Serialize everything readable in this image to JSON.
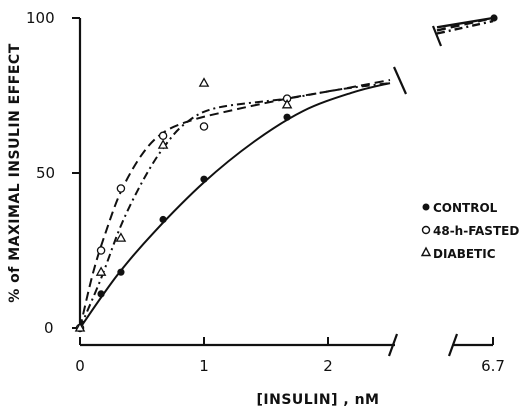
{
  "chart_data": {
    "type": "line",
    "xlabel": "[INSULIN] , nM",
    "ylabel": "% of MAXIMAL INSULIN EFFECT",
    "x_axis": {
      "range": [
        0,
        2.5
      ],
      "break_segment_range": [
        6.5,
        6.9
      ],
      "ticks": [
        "0",
        "1",
        "2",
        "6.7"
      ]
    },
    "y_axis": {
      "range": [
        0,
        100
      ],
      "ticks": [
        "0",
        "50",
        "100"
      ]
    },
    "grid": false,
    "legend_position": "right",
    "series": [
      {
        "name": "CONTROL",
        "marker": "filled-circle",
        "line_style": "solid",
        "points": [
          {
            "x": 0,
            "y": 0
          },
          {
            "x": 0.17,
            "y": 11
          },
          {
            "x": 0.33,
            "y": 18
          },
          {
            "x": 0.67,
            "y": 35
          },
          {
            "x": 1.0,
            "y": 48
          },
          {
            "x": 1.67,
            "y": 68
          }
        ],
        "curve": [
          [
            0,
            0
          ],
          [
            0.3,
            17
          ],
          [
            0.6,
            31
          ],
          [
            1.0,
            47
          ],
          [
            1.4,
            60
          ],
          [
            1.8,
            70
          ],
          [
            2.2,
            76
          ],
          [
            2.5,
            79
          ]
        ],
        "curve_after_break": [
          [
            6.5,
            97
          ],
          [
            6.9,
            100
          ]
        ]
      },
      {
        "name": "48-h-FASTED",
        "marker": "open-circle",
        "line_style": "dashed",
        "points": [
          {
            "x": 0,
            "y": 0
          },
          {
            "x": 0.17,
            "y": 25
          },
          {
            "x": 0.33,
            "y": 45
          },
          {
            "x": 0.67,
            "y": 62
          },
          {
            "x": 1.0,
            "y": 65
          },
          {
            "x": 1.67,
            "y": 74
          }
        ],
        "curve": [
          [
            0,
            0
          ],
          [
            0.1,
            17
          ],
          [
            0.2,
            30
          ],
          [
            0.33,
            44
          ],
          [
            0.5,
            56
          ],
          [
            0.67,
            63
          ],
          [
            0.9,
            67
          ],
          [
            1.2,
            70
          ],
          [
            1.67,
            74
          ],
          [
            2.1,
            77
          ],
          [
            2.5,
            80
          ]
        ],
        "curve_after_break": [
          [
            6.5,
            96
          ],
          [
            6.9,
            100
          ]
        ]
      },
      {
        "name": "DIABETIC",
        "marker": "open-triangle",
        "line_style": "dash-dot",
        "points": [
          {
            "x": 0,
            "y": 0
          },
          {
            "x": 0.17,
            "y": 18
          },
          {
            "x": 0.33,
            "y": 29
          },
          {
            "x": 0.67,
            "y": 59
          },
          {
            "x": 1.0,
            "y": 79
          },
          {
            "x": 1.67,
            "y": 72
          }
        ],
        "curve": [
          [
            0,
            0
          ],
          [
            0.17,
            16
          ],
          [
            0.33,
            33
          ],
          [
            0.5,
            47
          ],
          [
            0.67,
            58
          ],
          [
            0.85,
            66
          ],
          [
            1.1,
            71
          ],
          [
            1.67,
            74
          ],
          [
            2.1,
            77
          ],
          [
            2.5,
            79
          ]
        ],
        "curve_after_break": [
          [
            6.5,
            95
          ],
          [
            6.9,
            99
          ]
        ]
      }
    ]
  }
}
